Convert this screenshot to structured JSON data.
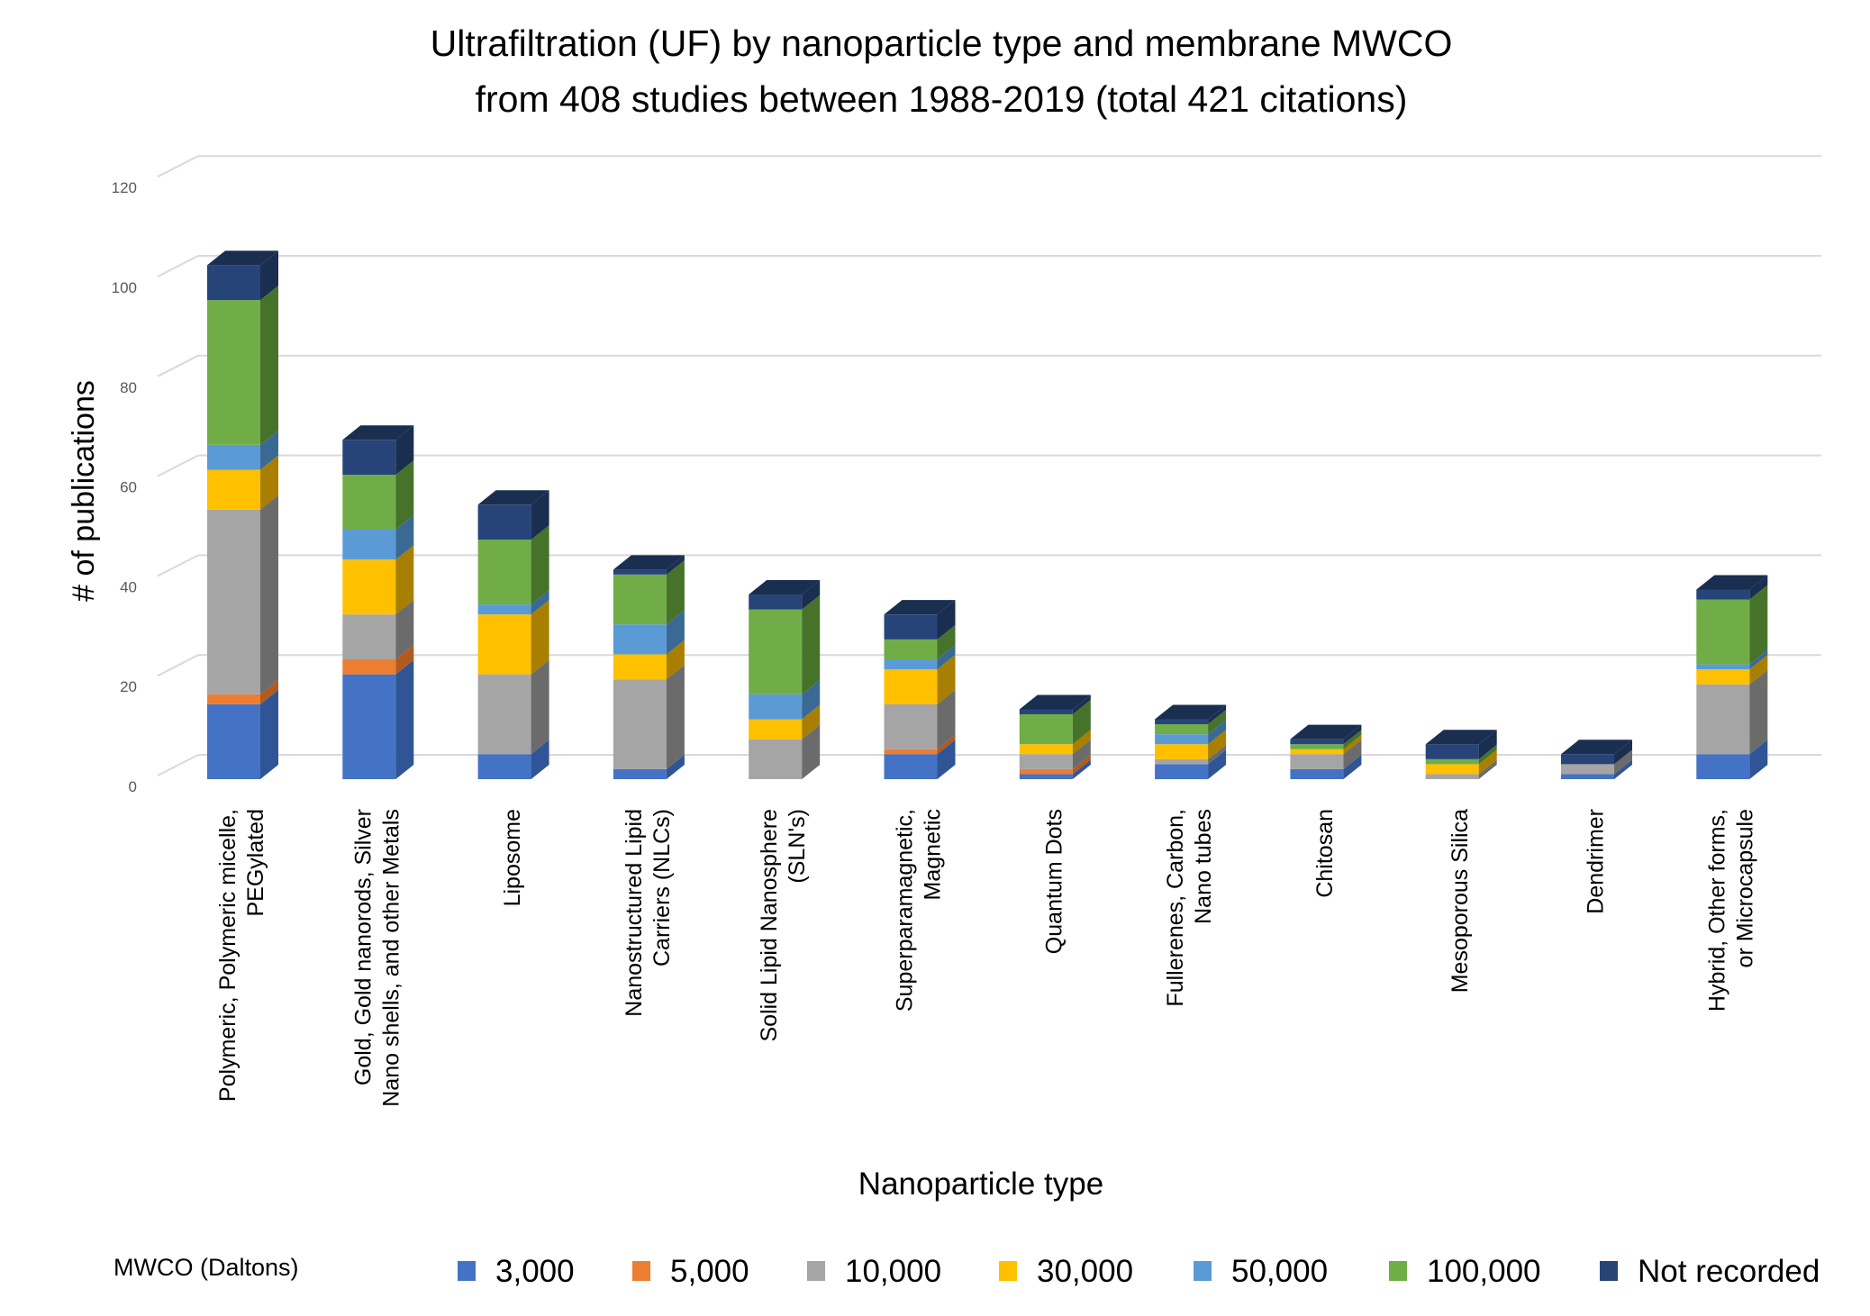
{
  "chart_data": {
    "type": "bar",
    "stacked": true,
    "three_d": true,
    "title": [
      "Ultrafiltration (UF) by nanoparticle type and membrane MWCO",
      "from 408 studies between 1988-2019 (total 421 citations)"
    ],
    "xlabel": "Nanoparticle type",
    "ylabel": "# of publications",
    "ylim": [
      0,
      120
    ],
    "yticks": [
      0,
      20,
      40,
      60,
      80,
      100,
      120
    ],
    "grid": true,
    "legend_title": "MWCO (Daltons)",
    "legend_placement": "bottom",
    "categories": [
      [
        "Polymeric, Polymeric micelle,",
        "PEGylated"
      ],
      [
        "Gold, Gold nanorods, Silver",
        "Nano shells, and other Metals"
      ],
      [
        "Liposome"
      ],
      [
        "Nanostructured Lipid",
        "Carriers (NLCs)"
      ],
      [
        "Solid Lipid Nanosphere",
        "(SLN's)"
      ],
      [
        "Superparamagnetic,",
        "Magnetic"
      ],
      [
        "Quantum Dots"
      ],
      [
        "Fullerenes, Carbon,",
        "Nano tubes"
      ],
      [
        "Chitosan"
      ],
      [
        "Mesoporous Silica"
      ],
      [
        "Dendrimer"
      ],
      [
        "Hybrid, Other forms,",
        "or Microcapsule"
      ]
    ],
    "series": [
      {
        "name": "3,000",
        "color": "#4472C4",
        "side": "#2F5597",
        "values": [
          15,
          21,
          5,
          2,
          0,
          5,
          1,
          3,
          2,
          0,
          1,
          5
        ]
      },
      {
        "name": "5,000",
        "color": "#ED7D31",
        "side": "#B05A1E",
        "values": [
          2,
          3,
          0,
          0,
          0,
          1,
          1,
          0,
          0,
          0,
          0,
          0
        ]
      },
      {
        "name": "10,000",
        "color": "#A5A5A5",
        "side": "#6B6B6B",
        "values": [
          37,
          9,
          16,
          18,
          8,
          9,
          3,
          1,
          3,
          1,
          2,
          14
        ]
      },
      {
        "name": "30,000",
        "color": "#FFC000",
        "side": "#A87F00",
        "values": [
          8,
          11,
          12,
          5,
          4,
          7,
          2,
          3,
          1,
          2,
          0,
          3
        ]
      },
      {
        "name": "50,000",
        "color": "#5B9BD5",
        "side": "#3A6A94",
        "values": [
          5,
          6,
          2,
          6,
          5,
          2,
          0,
          2,
          0,
          0,
          0,
          1
        ]
      },
      {
        "name": "100,000",
        "color": "#70AD47",
        "side": "#46722A",
        "values": [
          29,
          11,
          13,
          10,
          17,
          4,
          6,
          2,
          1,
          1,
          0,
          13
        ]
      },
      {
        "name": "Not recorded",
        "color": "#264478",
        "side": "#1A2E50",
        "values": [
          7,
          7,
          7,
          1,
          3,
          5,
          1,
          1,
          1,
          3,
          2,
          2
        ]
      }
    ]
  }
}
